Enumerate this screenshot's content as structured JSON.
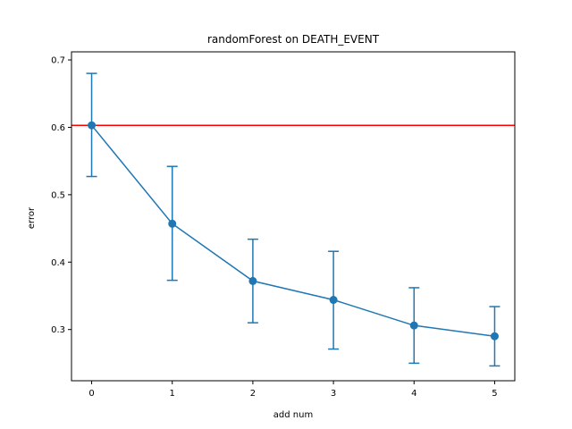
{
  "chart_data": {
    "type": "line",
    "title": "randomForest on DEATH_EVENT",
    "xlabel": "add num",
    "ylabel": "error",
    "xlim": [
      -0.25,
      5.25
    ],
    "ylim": [
      0.224,
      0.712
    ],
    "x_ticks": [
      0,
      1,
      2,
      3,
      4,
      5
    ],
    "y_ticks": [
      0.3,
      0.4,
      0.5,
      0.6,
      0.7
    ],
    "grid": false,
    "legend": "none",
    "series": [
      {
        "x": [
          0,
          1,
          2,
          3,
          4,
          5
        ],
        "y": [
          0.603,
          0.457,
          0.372,
          0.344,
          0.306,
          0.29
        ],
        "error_low": [
          0.527,
          0.373,
          0.31,
          0.271,
          0.25,
          0.246
        ],
        "error_high": [
          0.68,
          0.542,
          0.434,
          0.416,
          0.362,
          0.334
        ],
        "color": "#1f77b4",
        "marker": "circle"
      }
    ],
    "reference_line": {
      "orientation": "horizontal",
      "y": 0.603,
      "color": "#ff0000"
    }
  }
}
